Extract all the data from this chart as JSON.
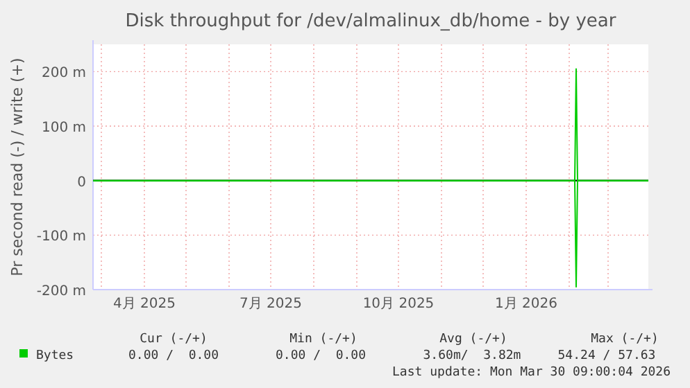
{
  "chart_data": {
    "type": "line",
    "title": "Disk throughput for /dev/almalinux_db/home - by year",
    "ylabel": "Pr second read (-) / write (+)",
    "x": [
      "2025-02-23",
      "2026-02-05",
      "2026-02-06",
      "2026-02-07",
      "2026-03-30"
    ],
    "series": [
      {
        "name": "Bytes",
        "color": "#00cc00",
        "values": [
          0,
          0,
          205,
          0,
          0
        ]
      },
      {
        "color": "#00cc00",
        "values": [
          0,
          0,
          -195,
          0,
          0
        ]
      }
    ],
    "xlim": [
      "2025-02-23",
      "2026-03-30"
    ],
    "xticks": [
      {
        "value": "2025-04-01",
        "label": "4月 2025"
      },
      {
        "value": "2025-07-01",
        "label": "7月 2025"
      },
      {
        "value": "2025-10-01",
        "label": "10月 2025"
      },
      {
        "value": "2026-01-01",
        "label": "1月 2026"
      }
    ],
    "ylim": [
      -200,
      250
    ],
    "yticks": [
      {
        "value": -200,
        "label": "-200 m"
      },
      {
        "value": -100,
        "label": "-100 m"
      },
      0,
      {
        "value": 100,
        "label": "100 m"
      },
      {
        "value": 200,
        "label": "200 m"
      }
    ],
    "ref_lines": [
      {
        "axis": "y",
        "value": 0,
        "color": "#000000"
      }
    ],
    "grid": true,
    "legend": "bottom left",
    "annotations": [
      "Cur (-/+)",
      "Min (-/+)",
      "Avg (-/+)",
      "Max (-/+)",
      "0.00 /  0.00",
      "0.00 /  0.00",
      "3.60m/  3.82m",
      "54.24 / 57.63",
      "Last update: Mon Mar 30 09:00:04 2026"
    ]
  }
}
